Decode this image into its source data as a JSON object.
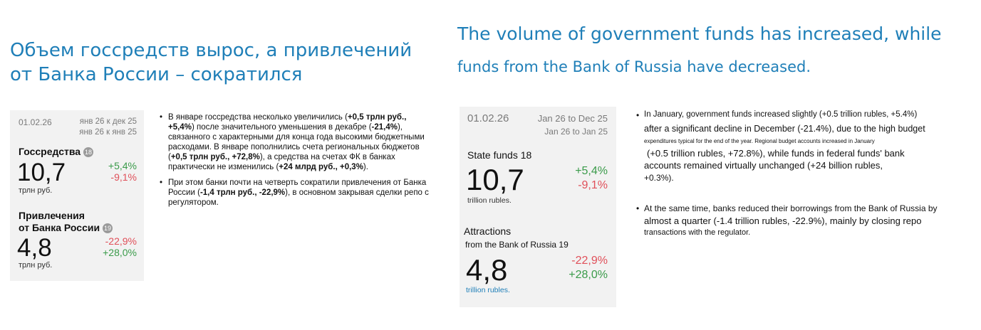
{
  "ru": {
    "title_line1": "Объем госсредств вырос, а привлечений",
    "title_line2": "от Банка России – сократился",
    "card": {
      "date": "01.02.26",
      "col1": "янв 26 к дек 25",
      "col2": "янв 26 к янв 25",
      "m1_label": "Госсредства",
      "m1_badge": "18",
      "m1_value": "10,7",
      "m1_unit": "трлн руб.",
      "m1_c1": "+5,4%",
      "m1_c2": "-9,1%",
      "m2_label1": "Привлечения",
      "m2_label2": "от Банка России",
      "m2_badge": "19",
      "m2_value": "4,8",
      "m2_unit": "трлн руб.",
      "m2_c1": "-22,9%",
      "m2_c2": "+28,0%"
    },
    "b1_pre": "В январе госсредства несколько увеличились (",
    "b1_v1": "+0,5 трлн руб., +5,4%",
    "b1_mid1": ") после значительного уменьшения в декабре (",
    "b1_v2": "-21,4%",
    "b1_mid2": "), связанного с характерными для конца года высокими бюджетными расходами. В январе пополнились счета региональных бюджетов (",
    "b1_v3": "+0,5 трлн руб., +72,8%",
    "b1_mid3": "), а средства на счетах ФК в банках практически не изменились (",
    "b1_v4": "+24 млрд руб., +0,3%",
    "b1_end": ").",
    "b2_pre": "При этом банки почти на четверть сократили привлечения от Банка России (",
    "b2_v1": "-1,4 трлн руб., -22,9%",
    "b2_end": "), в основном закрывая сделки репо с регулятором."
  },
  "en": {
    "title_line1": "The volume of government funds has increased, while",
    "title_line2": "funds from the Bank of Russia have decreased.",
    "card": {
      "date": "01.02.26",
      "col1": "Jan 26 to Dec 25",
      "col2": "Jan 26 to Jan 25",
      "m1_label": "State funds 18",
      "m1_value": "10,7",
      "m1_unit": "trillion rubles.",
      "m1_c1": "+5,4%",
      "m1_c2": "-9,1%",
      "m2_label1": "Attractions",
      "m2_label2": "from the Bank of Russia 19",
      "m2_value": "4,8",
      "m2_unit": "trillion rubles.",
      "m2_c1": "-22,9%",
      "m2_c2": "+28,0%"
    },
    "b1_l1": "In January, government funds increased slightly (+0.5 trillion rubles, +5.4%)",
    "b1_l2": "after a significant decline in December (-21.4%), due to the high budget",
    "b1_l3": "expenditures typical for the end of the year. Regional budget accounts increased in January",
    "b1_l4": "(+0.5 trillion rubles, +72.8%), while funds in federal funds' bank",
    "b1_l5": "accounts remained virtually unchanged (+24 billion rubles,",
    "b1_l6": "+0.3%).",
    "b2_l1": "At the same time, banks reduced their borrowings from the Bank of Russia by",
    "b2_l2": "almost a quarter (-1.4 trillion rubles, -22.9%), mainly by closing repo",
    "b2_l3": "transactions with the regulator."
  },
  "colors": {
    "title": "#1f7fb8",
    "positive": "#3a9b4a",
    "negative": "#e0505a",
    "card_bg": "#f2f2f2"
  }
}
